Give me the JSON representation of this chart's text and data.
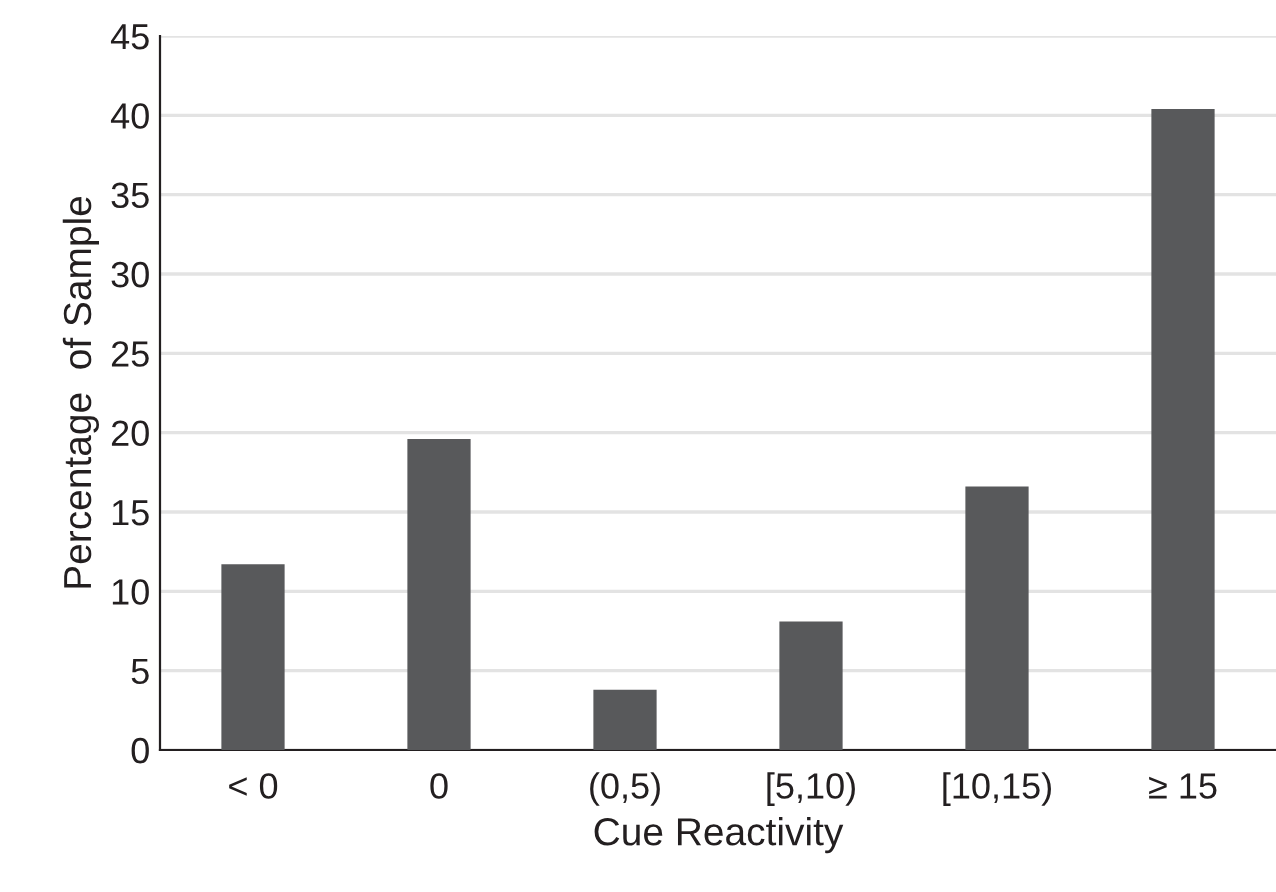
{
  "chart_data": {
    "type": "bar",
    "xlabel": "Cue Reactivity",
    "ylabel": "Percentage  of Sample",
    "categories": [
      "< 0",
      "0",
      "(0,5)",
      "[5,10)",
      "[10,15)",
      "≥ 15"
    ],
    "values": [
      11.7,
      19.6,
      3.8,
      8.1,
      16.6,
      40.4
    ],
    "color": "#58595b",
    "ylim": [
      0,
      45
    ],
    "yticks": [
      0,
      5,
      10,
      15,
      20,
      25,
      30,
      35,
      40,
      45
    ],
    "grid": "y"
  }
}
